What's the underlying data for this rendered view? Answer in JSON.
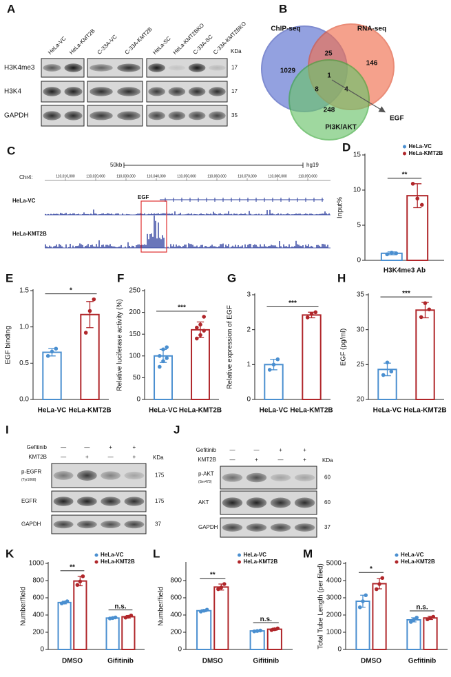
{
  "panel_labels": [
    "A",
    "B",
    "C",
    "D",
    "E",
    "F",
    "G",
    "H",
    "I",
    "J",
    "K",
    "L",
    "M"
  ],
  "blot_a": {
    "lanes": [
      "HeLa-VC",
      "HeLa-KMT2B",
      "C-33A-VC",
      "C-33A-KMT2B",
      "HeLa-SC",
      "HeLa-KMT2BKO",
      "C-33A-SC",
      "C-33A-KMT2BKO"
    ],
    "unit": "KDa",
    "rows": [
      {
        "label": "H3K4me3",
        "kda": 17
      },
      {
        "label": "H3K4",
        "kda": 17
      },
      {
        "label": "GAPDH",
        "kda": 35
      }
    ]
  },
  "venn": {
    "sets": [
      "ChIP-seq",
      "RNA-seq",
      "PI3K/AKT"
    ],
    "counts": {
      "chip_only": 1029,
      "chip_rna": 25,
      "rna_only": 146,
      "all": 1,
      "chip_pi3k": 8,
      "rna_pi3k": 4,
      "pi3k_only": 248
    },
    "highlight": "EGF"
  },
  "track": {
    "scale": "50kb",
    "genome": "hg19",
    "chrom": "Chr4:",
    "coords": [
      "110,010,000",
      "110,020,000",
      "110,030,000",
      "110,040,000",
      "110,050,000",
      "110,060,000",
      "110,070,000",
      "110,080,000",
      "110,090,000"
    ],
    "gene": "EGF",
    "tracks": [
      "HeLa-VC",
      "HeLa-KMT2B"
    ]
  },
  "blot_i": {
    "conditions": [
      {
        "label": "Gefitinib",
        "signs": [
          "—",
          "—",
          "+",
          "+"
        ]
      },
      {
        "label": "KMT2B",
        "signs": [
          "—",
          "+",
          "—",
          "+"
        ]
      }
    ],
    "unit": "KDa",
    "rows": [
      {
        "label": "p-EGFR",
        "sublabel": "(Tyr1068)",
        "kda": 175
      },
      {
        "label": "EGFR",
        "kda": 175
      },
      {
        "label": "GAPDH",
        "kda": 37
      }
    ]
  },
  "blot_j": {
    "conditions": [
      {
        "label": "Gefitinib",
        "signs": [
          "—",
          "—",
          "+",
          "+"
        ]
      },
      {
        "label": "KMT2B",
        "signs": [
          "—",
          "+",
          "—",
          "+"
        ]
      }
    ],
    "unit": "KDa",
    "rows": [
      {
        "label": "p-AKT",
        "sublabel": "(Ser473)",
        "kda": 60
      },
      {
        "label": "AKT",
        "kda": 60
      },
      {
        "label": "GAPDH",
        "kda": 37
      }
    ]
  },
  "chart_data": [
    {
      "type": "grouped-bar",
      "ylabel": "Input%",
      "categories": [
        "H3K4me3 Ab"
      ],
      "legend": "upper right",
      "series": [
        {
          "name": "HeLa-VC",
          "color": "#4a8fd0",
          "values": [
            1
          ],
          "errors": [
            0.2
          ],
          "points": [
            [
              0.85,
              1.1,
              1.0
            ]
          ]
        },
        {
          "name": "HeLa-KMT2B",
          "color": "#b0262a",
          "values": [
            9.2
          ],
          "errors": [
            1.7
          ],
          "points": [
            [
              10.9,
              8.8,
              7.9
            ]
          ]
        }
      ],
      "ylim": [
        0,
        15
      ],
      "yticks": [
        0,
        5,
        10,
        15
      ],
      "significance": [
        "**"
      ]
    },
    {
      "type": "bar",
      "ylabel": "EGF binding",
      "categories": [
        "HeLa-VC",
        "HeLa-KMT2B"
      ],
      "colors": [
        "#4a8fd0",
        "#b0262a"
      ],
      "values": [
        0.65,
        1.17
      ],
      "errors": [
        0.05,
        0.18
      ],
      "points": [
        [
          0.6,
          0.66,
          0.7
        ],
        [
          0.92,
          1.22,
          1.38
        ]
      ],
      "ylim": [
        0,
        1.5
      ],
      "yticks": [
        {
          "value": 0,
          "label": "0.0"
        },
        0.5,
        {
          "value": 1,
          "label": "1.0"
        },
        1.5
      ],
      "significance": "*"
    },
    {
      "type": "bar",
      "ylabel": "Relative luciferase activity (%)",
      "categories": [
        "HeLa-VC",
        "HeLa-KMT2B"
      ],
      "colors": [
        "#4a8fd0",
        "#b0262a"
      ],
      "values": [
        100,
        160
      ],
      "errors": [
        15,
        18
      ],
      "points": [
        [
          75,
          88,
          95,
          100,
          115,
          120
        ],
        [
          140,
          148,
          158,
          165,
          172,
          190
        ]
      ],
      "ylim": [
        0,
        250
      ],
      "yticks": [
        0,
        50,
        100,
        150,
        200,
        250
      ],
      "significance": "***"
    },
    {
      "type": "bar",
      "ylabel": "Relative expression of EGF",
      "categories": [
        "HeLa-VC",
        "HeLa-KMT2B"
      ],
      "colors": [
        "#4a8fd0",
        "#b0262a"
      ],
      "values": [
        1,
        2.42
      ],
      "errors": [
        0.15,
        0.08
      ],
      "points": [
        [
          0.85,
          1.0,
          1.15
        ],
        [
          2.35,
          2.45,
          2.5
        ]
      ],
      "ylim": [
        0,
        3
      ],
      "yticks": [
        0,
        1,
        2,
        3
      ],
      "significance": "***"
    },
    {
      "type": "bar",
      "ylabel": "EGF (pg/ml)",
      "categories": [
        "HeLa-VC",
        "HeLa-KMT2B"
      ],
      "colors": [
        "#4a8fd0",
        "#b0262a"
      ],
      "values": [
        24.3,
        32.8
      ],
      "errors": [
        0.9,
        1.1
      ],
      "points": [
        [
          23.5,
          25.3,
          24.0
        ],
        [
          31.8,
          33.8,
          32.9
        ]
      ],
      "ylim": [
        20,
        35
      ],
      "yticks": [
        20,
        25,
        30,
        35
      ],
      "significance": "***"
    },
    {
      "type": "grouped-bar",
      "ylabel": "Number/field",
      "categories": [
        "DMSO",
        "Gifitinib"
      ],
      "legend": "upper right",
      "series": [
        {
          "name": "HeLa-VC",
          "color": "#4a8fd0",
          "values": [
            545,
            365
          ],
          "errors": [
            15,
            8
          ],
          "points": [
            [
              535,
              545,
              560
            ],
            [
              360,
              365,
              372
            ]
          ]
        },
        {
          "name": "HeLa-KMT2B",
          "color": "#b0262a",
          "values": [
            795,
            380
          ],
          "errors": [
            55,
            15
          ],
          "points": [
            [
              750,
              790,
              850
            ],
            [
              370,
              380,
              395
            ]
          ]
        }
      ],
      "ylim": [
        0,
        1000
      ],
      "yticks": [
        0,
        200,
        400,
        600,
        800,
        1000
      ],
      "significance": [
        "**",
        "n.s."
      ]
    },
    {
      "type": "grouped-bar",
      "ylabel": "Number/field",
      "categories": [
        "DMSO",
        "Gifitinib"
      ],
      "legend": "upper right",
      "series": [
        {
          "name": "HeLa-VC",
          "color": "#4a8fd0",
          "values": [
            450,
            215
          ],
          "errors": [
            12,
            8
          ],
          "points": [
            [
              440,
              450,
              462
            ],
            [
              210,
              215,
              220
            ]
          ]
        },
        {
          "name": "HeLa-KMT2B",
          "color": "#b0262a",
          "values": [
            725,
            235
          ],
          "errors": [
            35,
            12
          ],
          "points": [
            [
              700,
              720,
              760
            ],
            [
              225,
              235,
              245
            ]
          ]
        }
      ],
      "ylim": [
        0,
        1000
      ],
      "yticks": [
        0,
        200,
        400,
        600,
        800
      ],
      "significance": [
        "**",
        "n.s."
      ]
    },
    {
      "type": "grouped-bar",
      "ylabel": "Total Tube Length (per filed)",
      "categories": [
        "DMSO",
        "Gefitinib"
      ],
      "legend": "upper right",
      "series": [
        {
          "name": "HeLa-VC",
          "color": "#4a8fd0",
          "values": [
            2800,
            1720
          ],
          "errors": [
            350,
            120
          ],
          "points": [
            [
              2450,
              2800,
              3150
            ],
            [
              1600,
              1720,
              1850
            ]
          ]
        },
        {
          "name": "HeLa-KMT2B",
          "color": "#b0262a",
          "values": [
            3820,
            1830
          ],
          "errors": [
            300,
            90
          ],
          "points": [
            [
              3500,
              3800,
              4150
            ],
            [
              1750,
              1830,
              1900
            ]
          ]
        }
      ],
      "ylim": [
        0,
        5000
      ],
      "yticks": [
        0,
        1000,
        2000,
        3000,
        4000,
        5000
      ],
      "significance": [
        "*",
        "n.s."
      ]
    }
  ]
}
